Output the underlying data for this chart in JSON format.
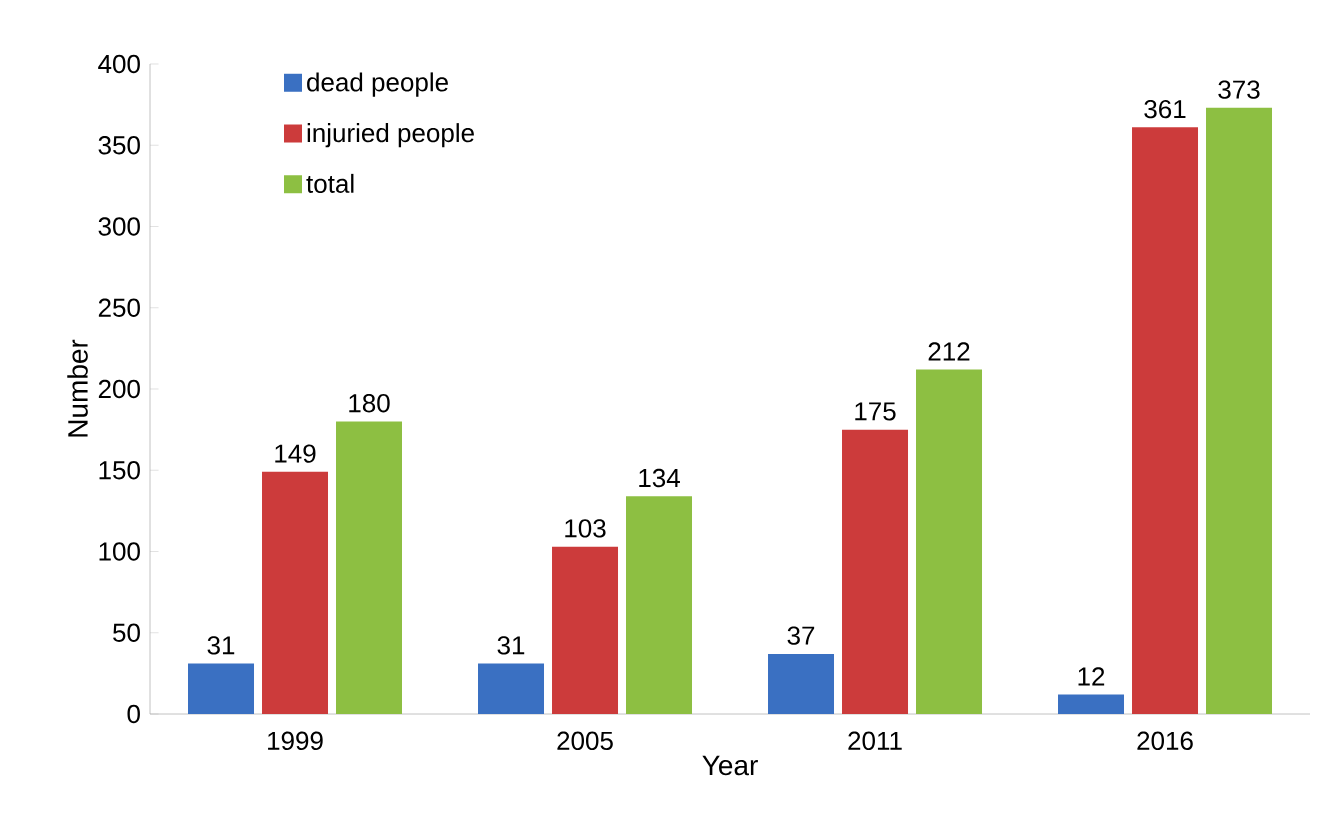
{
  "chart_data": {
    "type": "bar",
    "xlabel": "Year",
    "ylabel": "Number",
    "categories": [
      "1999",
      "2005",
      "2011",
      "2016"
    ],
    "series": [
      {
        "name": "dead people",
        "color": "#3a70c2",
        "values": [
          31,
          31,
          37,
          12
        ]
      },
      {
        "name": "injuried people",
        "color": "#cc3b3b",
        "values": [
          149,
          103,
          175,
          361
        ]
      },
      {
        "name": "total",
        "color": "#8dbf42",
        "values": [
          180,
          134,
          212,
          373
        ]
      }
    ],
    "ylim": [
      0,
      400
    ],
    "yticks": [
      0,
      50,
      100,
      150,
      200,
      250,
      300,
      350,
      400
    ],
    "grid": false,
    "legend": "top left",
    "data_labels": true
  }
}
